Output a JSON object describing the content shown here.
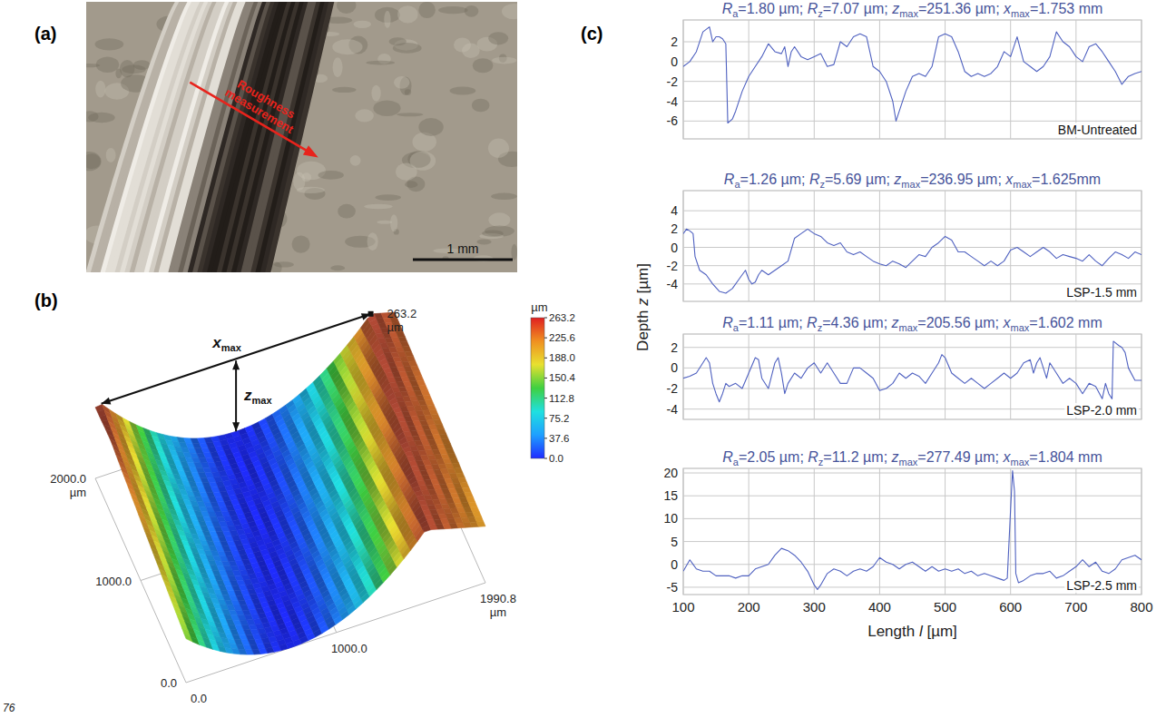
{
  "page_number": "76",
  "panel_a": {
    "letter": "(a)",
    "annotation": "Roughness measurement",
    "scale_bar": "1 mm"
  },
  "panel_b": {
    "letter": "(b)",
    "xmax_label": "xmax",
    "zmax_label": "zmax",
    "peak_label": "263.2 µm",
    "x_axis": {
      "range": [
        0,
        1990.8
      ],
      "ticks": [
        {
          "value": 0,
          "label": "0.0"
        },
        {
          "value": 1000,
          "label": "1000.0"
        },
        {
          "value": 1990.8,
          "label": "1990.8 µm"
        }
      ]
    },
    "y_axis": {
      "range": [
        0,
        2000
      ],
      "ticks": [
        {
          "value": 0,
          "label": "0.0"
        },
        {
          "value": 1000,
          "label": "1000.0"
        },
        {
          "value": 2000,
          "label": "2000.0 µm"
        }
      ]
    },
    "colorbar": {
      "title": "µm",
      "range": [
        0,
        263.2
      ],
      "ticks": [
        263.2,
        225.6,
        {
          "value": 188,
          "label": "188.0"
        },
        150.4,
        112.8,
        75.2,
        37.6,
        {
          "value": 0,
          "label": "0.0"
        }
      ],
      "colors": [
        "#1f2bff",
        "#1fa0ff",
        "#1fe0e0",
        "#3fd040",
        "#e8e030",
        "#f09020",
        "#e02020"
      ]
    }
  },
  "panel_c": {
    "letter": "(c)",
    "xlabel": "Length l [µm]",
    "ylabel": "Depth z [µm]"
  },
  "chart_data": [
    {
      "type": "line",
      "title": "Ra=1.80 µm; Rz=7.07 µm; zmax=251.36 µm; xmax=1.753 mm",
      "x": [
        100,
        110,
        120,
        130,
        140,
        145,
        150,
        155,
        160,
        165,
        168,
        175,
        180,
        190,
        200,
        210,
        220,
        230,
        240,
        250,
        255,
        260,
        265,
        270,
        280,
        290,
        300,
        310,
        320,
        330,
        340,
        350,
        360,
        370,
        380,
        390,
        400,
        410,
        420,
        425,
        430,
        440,
        450,
        460,
        470,
        480,
        490,
        500,
        510,
        520,
        530,
        540,
        550,
        560,
        570,
        580,
        590,
        600,
        610,
        620,
        630,
        640,
        650,
        660,
        670,
        680,
        690,
        700,
        710,
        720,
        730,
        740,
        750,
        760,
        770,
        780,
        790,
        800
      ],
      "xlim": [
        100,
        800
      ],
      "xticks": [
        100,
        200,
        300,
        400,
        500,
        600,
        700,
        800
      ],
      "ylim": [
        -7.8,
        4.2
      ],
      "yticks": [
        -6,
        -4,
        -2,
        0,
        2
      ],
      "grid": true,
      "tick_labels": "y",
      "series": [
        {
          "name": "BM-Untreated",
          "color": "#4f61c0",
          "line_style": "solid",
          "values": [
            -0.5,
            0,
            1,
            3,
            3.5,
            2,
            2.5,
            2.5,
            2.3,
            1.8,
            -6.2,
            -5.8,
            -5,
            -3,
            -1.5,
            -0.5,
            0.5,
            1.8,
            1,
            0.8,
            1.5,
            -0.5,
            1,
            1.5,
            0.5,
            0.2,
            0.5,
            0.8,
            -0.5,
            -0.3,
            2,
            1.5,
            2.5,
            2.8,
            2.5,
            -0.5,
            -1,
            -2,
            -4,
            -6,
            -5,
            -3,
            -1.5,
            -1.2,
            -1.5,
            -0.5,
            2.5,
            2.8,
            2.5,
            1,
            -1,
            -1.5,
            -1.2,
            -1.5,
            -1.2,
            -0.5,
            1,
            0.5,
            2.5,
            0,
            -0.5,
            -1,
            -0.5,
            0.5,
            3,
            2,
            1.5,
            0.5,
            0,
            1.5,
            1.8,
            1,
            0,
            -1,
            -2.3,
            -1.5,
            -1.2,
            -1
          ]
        }
      ]
    },
    {
      "type": "line",
      "title": "Ra=1.26 µm; Rz=5.69 µm; zmax=236.95 µm; xmax=1.625mm",
      "x": [
        100,
        105,
        110,
        115,
        118,
        125,
        135,
        145,
        155,
        165,
        175,
        185,
        195,
        200,
        205,
        210,
        215,
        220,
        230,
        240,
        250,
        260,
        270,
        280,
        290,
        300,
        310,
        320,
        330,
        340,
        350,
        360,
        370,
        380,
        390,
        400,
        410,
        420,
        430,
        440,
        450,
        460,
        470,
        480,
        490,
        500,
        510,
        520,
        530,
        540,
        550,
        560,
        570,
        580,
        590,
        600,
        610,
        620,
        630,
        640,
        650,
        660,
        670,
        680,
        690,
        700,
        710,
        720,
        730,
        740,
        750,
        760,
        770,
        780,
        790,
        800
      ],
      "xlim": [
        100,
        800
      ],
      "xticks": [
        100,
        200,
        300,
        400,
        500,
        600,
        700,
        800
      ],
      "ylim": [
        -5.9,
        6.2
      ],
      "yticks": [
        -4,
        -2,
        0,
        2,
        4
      ],
      "grid": true,
      "tick_labels": "y",
      "series": [
        {
          "name": "LSP-1.5 mm",
          "color": "#4f61c0",
          "line_style": "solid",
          "values": [
            1.5,
            2,
            1.8,
            1.5,
            -1,
            -2.5,
            -3,
            -4,
            -4.8,
            -5,
            -4.5,
            -3.5,
            -2.5,
            -3.5,
            -4,
            -3.8,
            -3,
            -2.5,
            -3,
            -2.5,
            -2,
            -1.5,
            1,
            1.5,
            2,
            1.5,
            1.2,
            0.5,
            0.2,
            0.5,
            -0.5,
            -0.8,
            -0.5,
            -1,
            -1.5,
            -1.8,
            -2,
            -1.5,
            -1.8,
            -2.2,
            -1.5,
            -0.8,
            -1,
            0,
            0.5,
            1.2,
            0.8,
            -0.5,
            -0.5,
            -1,
            -1.5,
            -2,
            -1.5,
            -2,
            -1.5,
            -0.3,
            0,
            -0.5,
            -1,
            -0.5,
            0,
            -0.5,
            -1.2,
            -0.8,
            -1,
            -1.2,
            -1.5,
            -0.8,
            -1.5,
            -2,
            -1.2,
            -0.5,
            -0.8,
            -1.2,
            -0.5,
            -0.8
          ]
        }
      ]
    },
    {
      "type": "line",
      "title": "Ra=1.11 µm; Rz=4.36 µm; zmax=205.56 µm; xmax=1.602 mm",
      "x": [
        100,
        110,
        120,
        130,
        135,
        140,
        145,
        150,
        155,
        160,
        165,
        170,
        180,
        190,
        200,
        210,
        215,
        220,
        230,
        240,
        245,
        250,
        255,
        260,
        270,
        280,
        290,
        300,
        310,
        320,
        330,
        340,
        350,
        360,
        370,
        380,
        390,
        400,
        410,
        420,
        430,
        440,
        450,
        460,
        470,
        480,
        490,
        495,
        500,
        510,
        520,
        530,
        540,
        550,
        560,
        570,
        580,
        590,
        600,
        610,
        620,
        630,
        635,
        640,
        645,
        650,
        655,
        660,
        670,
        680,
        690,
        700,
        710,
        720,
        730,
        740,
        745,
        750,
        755,
        757,
        765,
        770,
        775,
        780,
        790,
        800
      ],
      "xlim": [
        100,
        800
      ],
      "xticks": [
        100,
        200,
        300,
        400,
        500,
        600,
        700,
        800
      ],
      "ylim": [
        -5,
        3.3
      ],
      "yticks": [
        -4,
        -2,
        0,
        2
      ],
      "grid": true,
      "tick_labels": "y",
      "series": [
        {
          "name": "LSP-2.0 mm",
          "color": "#4f61c0",
          "line_style": "solid",
          "values": [
            -1,
            -0.8,
            -0.5,
            0.5,
            1,
            0.5,
            -1.5,
            -2.5,
            -3.3,
            -2.5,
            -1.5,
            -1.8,
            -1.5,
            -2,
            -0.5,
            1,
            0.8,
            -1,
            -2,
            0.5,
            1,
            -0.5,
            -2.5,
            -1.5,
            -0.5,
            -1,
            0,
            0.5,
            -0.5,
            0.5,
            -0.5,
            -1.5,
            -1.5,
            0,
            0,
            -0.5,
            -1,
            -2.2,
            -2,
            -1.5,
            -0.5,
            -1,
            -0.5,
            -0.8,
            -1.5,
            -0.5,
            0.5,
            1.3,
            1,
            -0.5,
            -1,
            -1.5,
            -1,
            -1.5,
            -2,
            -1.5,
            -1,
            -0.5,
            -1,
            -0.5,
            0.5,
            0.8,
            -0.5,
            0.5,
            1,
            0,
            -1,
            0.5,
            -0.5,
            -1.5,
            -1,
            -1.5,
            -2.5,
            -1.5,
            -1.8,
            -3,
            -1.5,
            -2.5,
            -3,
            2.6,
            2.2,
            2,
            1.5,
            0,
            -1.2,
            -1.2
          ]
        }
      ]
    },
    {
      "type": "line",
      "title": "Ra=2.05 µm; Rz=11.2 µm; zmax=277.49 µm; xmax=1.804 mm",
      "x": [
        100,
        110,
        120,
        130,
        140,
        150,
        160,
        170,
        180,
        190,
        200,
        210,
        220,
        230,
        240,
        250,
        260,
        270,
        280,
        290,
        300,
        305,
        310,
        320,
        330,
        340,
        350,
        360,
        370,
        380,
        390,
        400,
        410,
        420,
        430,
        440,
        450,
        460,
        470,
        480,
        490,
        500,
        510,
        520,
        530,
        540,
        550,
        560,
        570,
        580,
        590,
        595,
        600,
        603,
        606,
        608,
        612,
        620,
        630,
        640,
        650,
        660,
        670,
        680,
        690,
        700,
        710,
        720,
        730,
        740,
        750,
        760,
        770,
        780,
        790,
        800
      ],
      "xlim": [
        100,
        800
      ],
      "xticks": [
        100,
        200,
        300,
        400,
        500,
        600,
        700,
        800
      ],
      "ylim": [
        -6.6,
        21
      ],
      "yticks": [
        -5,
        0,
        5,
        10,
        15,
        20
      ],
      "grid": true,
      "tick_labels": true,
      "series": [
        {
          "name": "LSP-2.5 mm",
          "color": "#4f61c0",
          "line_style": "solid",
          "values": [
            -1.5,
            1,
            -1,
            -1.5,
            -1.5,
            -2.5,
            -2.5,
            -2.5,
            -3,
            -2.5,
            -2.5,
            -1,
            -0.5,
            0,
            2,
            3.5,
            3,
            2,
            0.5,
            -1.5,
            -4.5,
            -5.5,
            -4.5,
            -2,
            -1,
            -1.5,
            -2.5,
            -1.5,
            -1,
            -1.5,
            -0.5,
            1.5,
            0.5,
            0,
            -1,
            0,
            0.5,
            -0.5,
            -1.5,
            -0.5,
            -1.5,
            -1,
            -1.5,
            -1,
            -2,
            -1.5,
            -2.5,
            -2,
            -2.5,
            -3,
            -3.5,
            -3,
            12,
            20.5,
            16,
            -2,
            -4,
            -3.5,
            -2.5,
            -2,
            -2,
            -1.5,
            -3,
            -2.5,
            -1.5,
            -0.5,
            1,
            -0.5,
            0.5,
            -1.5,
            -2,
            -1,
            1,
            1.5,
            2,
            1
          ]
        }
      ]
    }
  ]
}
